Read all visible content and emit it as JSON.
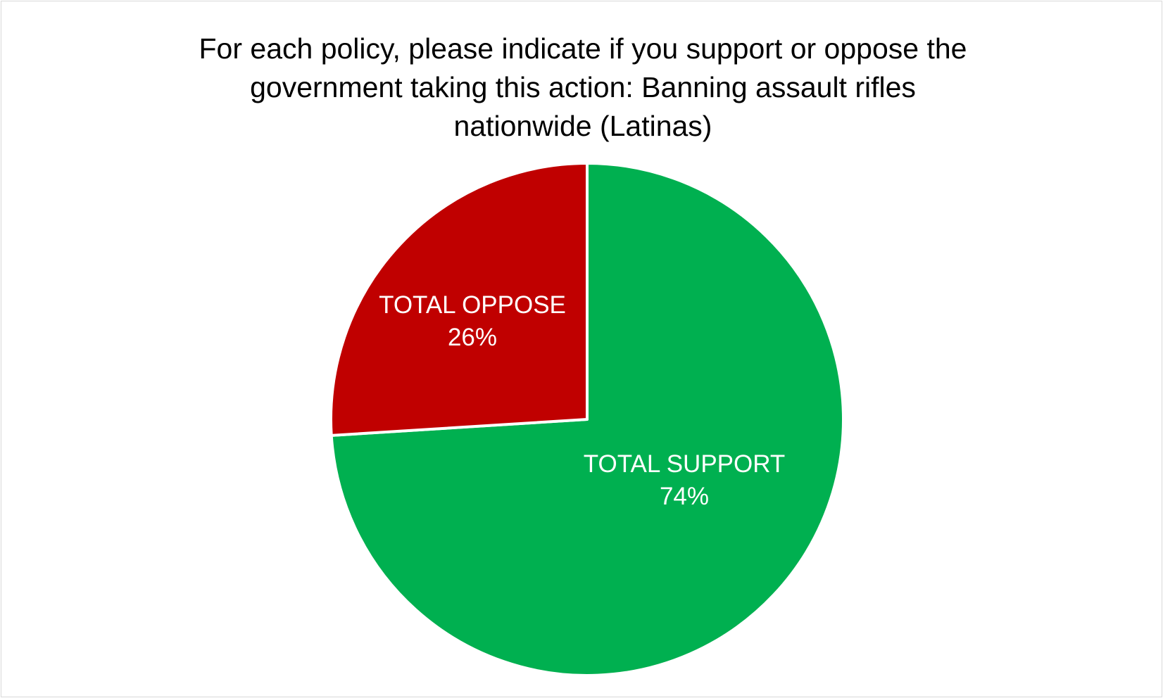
{
  "chart_data": {
    "type": "pie",
    "title_lines": [
      "For each policy, please indicate if you support or oppose the",
      "government taking this action: Banning assault rifles",
      "nationwide (Latinas)"
    ],
    "slices": [
      {
        "label": "TOTAL SUPPORT",
        "value": 74,
        "value_label": "74%",
        "color": "#00B050"
      },
      {
        "label": "TOTAL OPPOSE",
        "value": 26,
        "value_label": "26%",
        "color": "#C00000"
      }
    ],
    "start_angle_deg": 0,
    "direction": "clockwise",
    "legend": "none",
    "label_color": "#FFFFFF",
    "slice_border_color": "#FFFFFF"
  }
}
